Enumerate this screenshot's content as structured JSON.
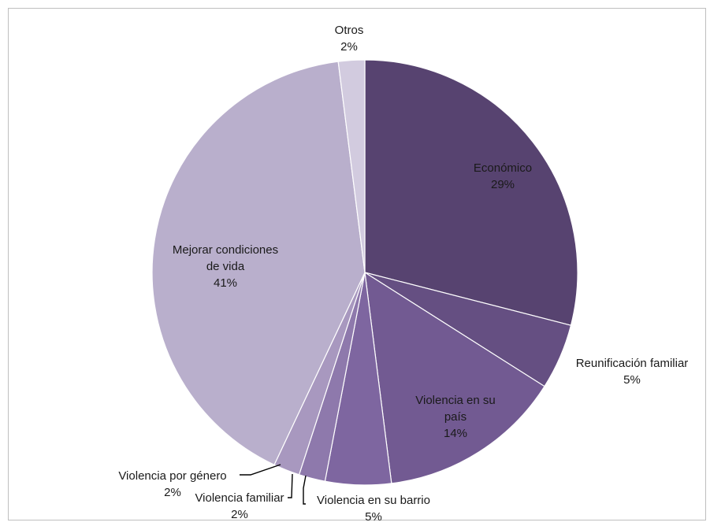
{
  "chart_data": {
    "type": "pie",
    "title": "",
    "slices": [
      {
        "label": "Económico",
        "value": 29,
        "value_label": "29%",
        "color": "#574370"
      },
      {
        "label": "Reunificación familiar",
        "value": 5,
        "value_label": "5%",
        "color": "#654f82"
      },
      {
        "label": "Violencia en su país",
        "value": 14,
        "value_label": "14%",
        "color": "#725a92"
      },
      {
        "label": "Violencia en su barrio",
        "value": 5,
        "value_label": "5%",
        "color": "#7e66a0"
      },
      {
        "label": "Violencia familiar",
        "value": 2,
        "value_label": "2%",
        "color": "#8e79ac"
      },
      {
        "label": "Violencia por género",
        "value": 2,
        "value_label": "2%",
        "color": "#a898bf"
      },
      {
        "label": "Mejorar condiciones de vida",
        "value": 41,
        "value_label": "41%",
        "color": "#b9afcc"
      },
      {
        "label": "Otros",
        "value": 2,
        "value_label": "2%",
        "color": "#d2cbdf"
      }
    ],
    "start_angle": "12 o'clock",
    "direction": "clockwise",
    "legend": "none"
  }
}
